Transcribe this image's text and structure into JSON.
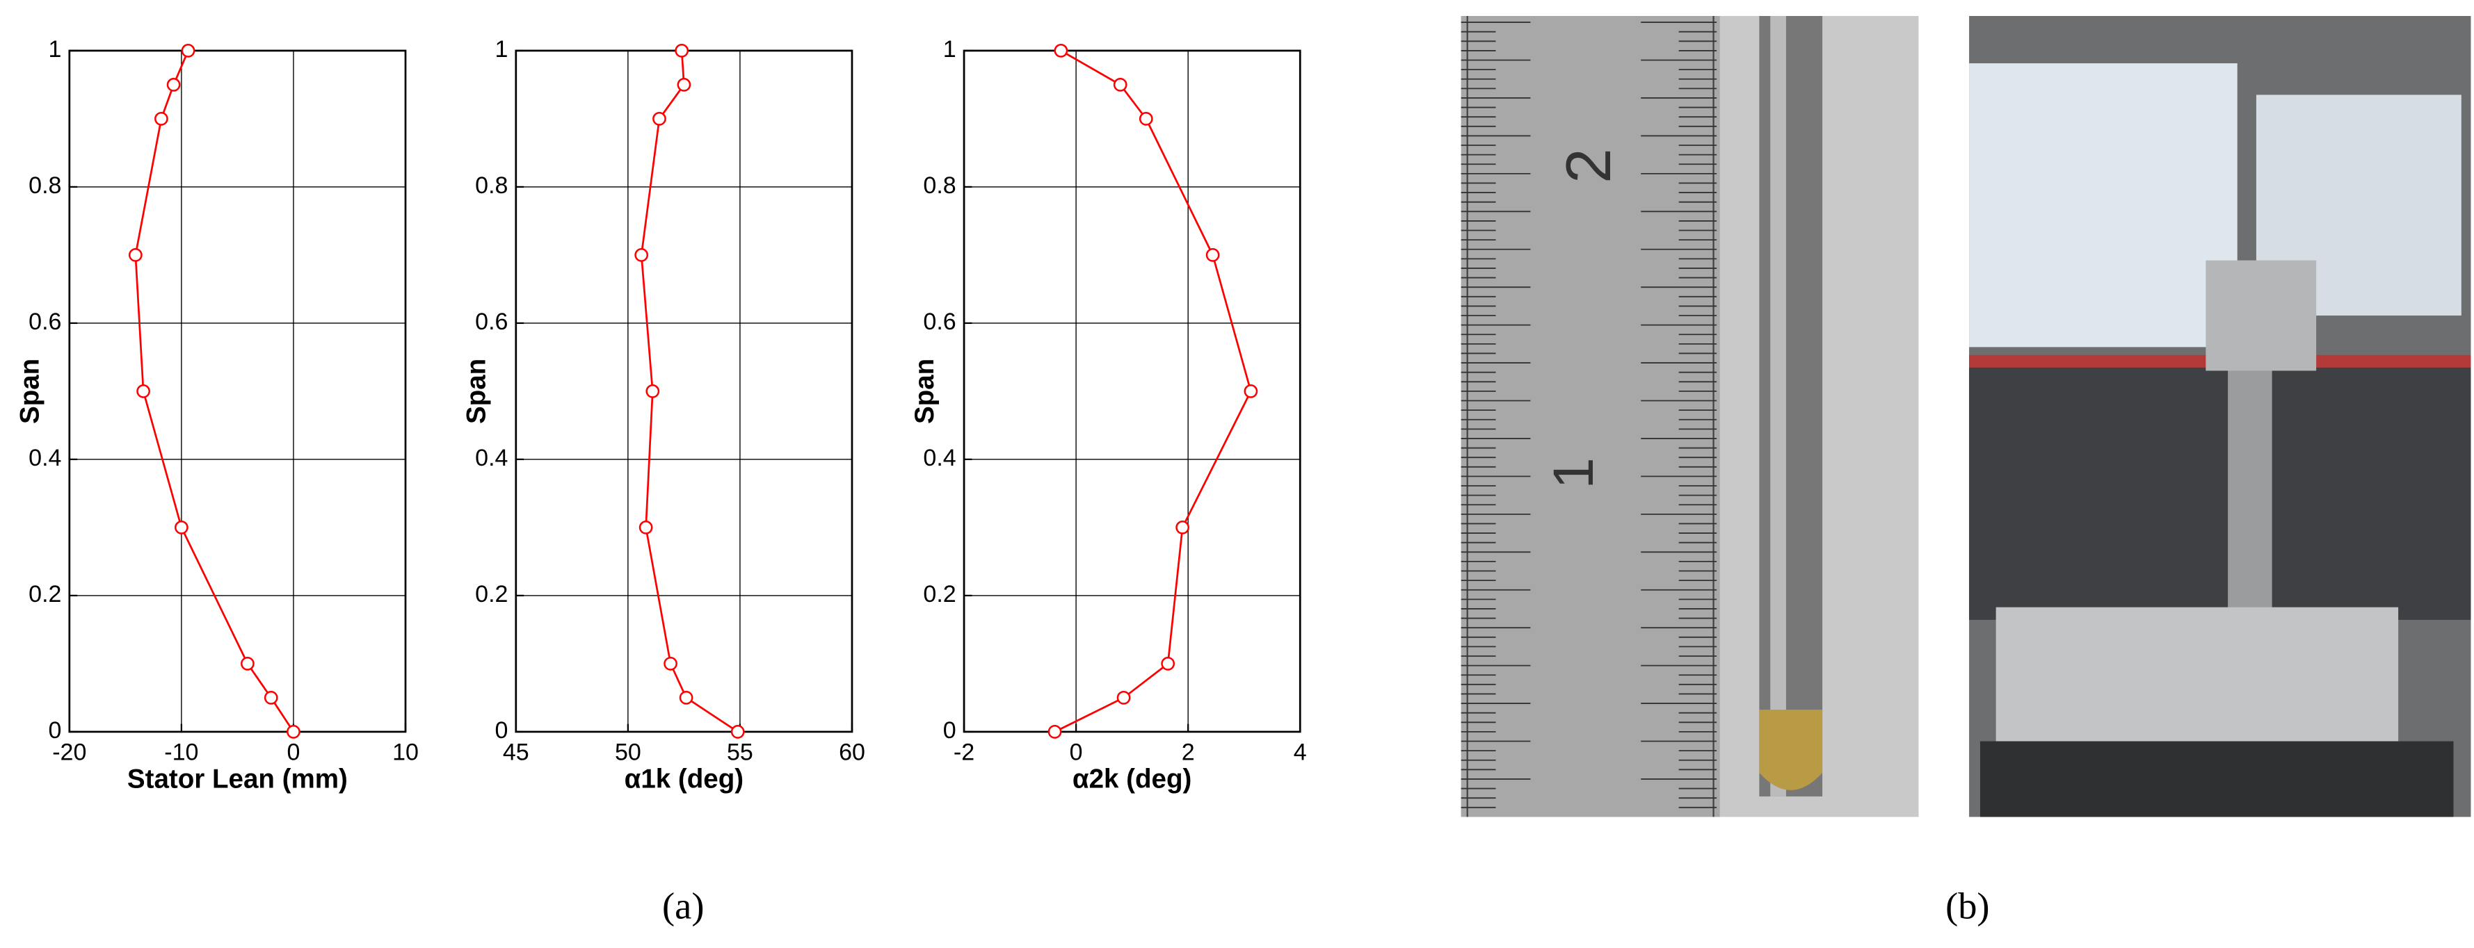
{
  "chart_data": [
    {
      "type": "line",
      "xlabel": "Stator Lean (mm)",
      "ylabel": "Span",
      "color": "#ff0000",
      "grid": true,
      "x": [
        0,
        -2,
        -4.1,
        -10,
        -13.4,
        -14.1,
        -11.8,
        -10.7,
        -9.4
      ],
      "values": [
        0,
        0.05,
        0.1,
        0.3,
        0.5,
        0.7,
        0.9,
        0.95,
        1
      ],
      "xlim": [
        -20,
        10
      ],
      "xticks": [
        -20,
        -10,
        0,
        10
      ],
      "ylim": [
        0,
        1
      ],
      "yticks": [
        0,
        0.2,
        0.4,
        0.6,
        0.8,
        1
      ]
    },
    {
      "type": "line",
      "xlabel": "α1k (deg)",
      "ylabel": "Span",
      "color": "#ff0000",
      "grid": true,
      "x": [
        54.9,
        52.6,
        51.9,
        50.8,
        51.1,
        50.6,
        51.4,
        52.5,
        52.4
      ],
      "values": [
        0,
        0.05,
        0.1,
        0.3,
        0.5,
        0.7,
        0.9,
        0.95,
        1
      ],
      "xlim": [
        45,
        60
      ],
      "xticks": [
        45,
        50,
        55,
        60
      ],
      "ylim": [
        0,
        1
      ],
      "yticks": [
        0,
        0.2,
        0.4,
        0.6,
        0.8,
        1
      ]
    },
    {
      "type": "line",
      "xlabel": "α2k (deg)",
      "ylabel": "Span",
      "color": "#ff0000",
      "grid": true,
      "x": [
        -0.38,
        0.85,
        1.64,
        1.9,
        3.12,
        2.44,
        1.25,
        0.79,
        -0.27
      ],
      "values": [
        0,
        0.05,
        0.1,
        0.3,
        0.5,
        0.7,
        0.9,
        0.95,
        1
      ],
      "xlim": [
        -2,
        4
      ],
      "xticks": [
        -2,
        0,
        2,
        4
      ],
      "ylim": [
        0,
        1
      ],
      "yticks": [
        0,
        0.2,
        0.4,
        0.6,
        0.8,
        1
      ]
    }
  ],
  "captions": [
    "(a)",
    "(b)"
  ]
}
